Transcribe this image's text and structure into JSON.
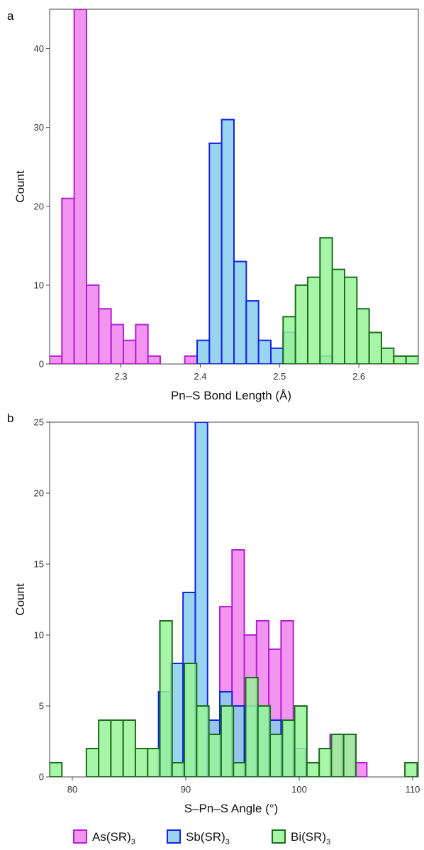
{
  "legend": {
    "items": [
      {
        "main": "As(SR)",
        "sub": "3",
        "color": "#ee82ee",
        "stroke": "#b41fd1"
      },
      {
        "main": "Sb(SR)",
        "sub": "3",
        "color": "#87ceeb",
        "stroke": "#1421e6"
      },
      {
        "main": "Bi(SR)",
        "sub": "3",
        "color": "#98f598",
        "stroke": "#1a6e1a"
      }
    ]
  },
  "chart_data": [
    {
      "type": "bar",
      "panel": "a",
      "xlabel": "Pn–S Bond Length (Å)",
      "ylabel": "Count",
      "xlim": [
        2.21,
        2.675
      ],
      "ylim": [
        0,
        45
      ],
      "xticks": [
        2.3,
        2.4,
        2.5,
        2.6
      ],
      "xtick_labels": [
        "2.3",
        "2.4",
        "2.5",
        "2.6"
      ],
      "yticks": [
        0,
        10,
        20,
        30,
        40
      ],
      "bin_width": 0.0155,
      "series": [
        {
          "name": "As(SR)3",
          "bins": [
            [
              2.21,
              1
            ],
            [
              2.2255,
              21
            ],
            [
              2.241,
              45
            ],
            [
              2.2565,
              10
            ],
            [
              2.272,
              7
            ],
            [
              2.2875,
              5
            ],
            [
              2.303,
              3
            ],
            [
              2.3185,
              5
            ],
            [
              2.334,
              1
            ],
            [
              2.3805,
              1
            ]
          ]
        },
        {
          "name": "Sb(SR)3",
          "bins": [
            [
              2.396,
              3
            ],
            [
              2.4115,
              28
            ],
            [
              2.427,
              31
            ],
            [
              2.4425,
              13
            ],
            [
              2.458,
              8
            ],
            [
              2.4735,
              3
            ],
            [
              2.489,
              2
            ],
            [
              2.5045,
              4
            ],
            [
              2.551,
              1
            ]
          ]
        },
        {
          "name": "Bi(SR)3",
          "bins": [
            [
              2.5045,
              6
            ],
            [
              2.52,
              10
            ],
            [
              2.5355,
              11
            ],
            [
              2.551,
              16
            ],
            [
              2.5665,
              12
            ],
            [
              2.582,
              11
            ],
            [
              2.5975,
              7
            ],
            [
              2.613,
              4
            ],
            [
              2.6285,
              2
            ],
            [
              2.644,
              1
            ],
            [
              2.6595,
              1
            ]
          ]
        }
      ]
    },
    {
      "type": "bar",
      "panel": "b",
      "xlabel": "S–Pn–S Angle (°)",
      "ylabel": "Count",
      "xlim": [
        78,
        110.5
      ],
      "ylim": [
        0,
        25
      ],
      "xticks": [
        80,
        90,
        100,
        110
      ],
      "xtick_labels": [
        "80",
        "90",
        "100",
        "110"
      ],
      "yticks": [
        0,
        5,
        10,
        15,
        20,
        25
      ],
      "bin_width": 1.08,
      "series": [
        {
          "name": "As(SR)3",
          "bins": [
            [
              91.92,
              4
            ],
            [
              93.0,
              12
            ],
            [
              94.08,
              16
            ],
            [
              95.16,
              10
            ],
            [
              96.24,
              11
            ],
            [
              97.32,
              9
            ],
            [
              98.4,
              11
            ],
            [
              102.72,
              3
            ],
            [
              103.8,
              3
            ],
            [
              104.88,
              1
            ]
          ]
        },
        {
          "name": "Sb(SR)3",
          "bins": [
            [
              87.6,
              6
            ],
            [
              88.68,
              8
            ],
            [
              89.76,
              13
            ],
            [
              90.84,
              25
            ],
            [
              91.92,
              4
            ],
            [
              93.0,
              6
            ],
            [
              94.08,
              5
            ],
            [
              95.16,
              5
            ],
            [
              96.24,
              5
            ],
            [
              97.32,
              4
            ],
            [
              98.4,
              4
            ],
            [
              99.48,
              2
            ]
          ]
        },
        {
          "name": "Bi(SR)3",
          "bins": [
            [
              78.0,
              1
            ],
            [
              81.24,
              2
            ],
            [
              82.32,
              4
            ],
            [
              83.4,
              4
            ],
            [
              84.48,
              4
            ],
            [
              85.56,
              2
            ],
            [
              86.64,
              2
            ],
            [
              87.72,
              11
            ],
            [
              88.8,
              1
            ],
            [
              89.88,
              8
            ],
            [
              90.96,
              5
            ],
            [
              92.04,
              3
            ],
            [
              93.12,
              5
            ],
            [
              94.2,
              1
            ],
            [
              95.28,
              7
            ],
            [
              96.36,
              5
            ],
            [
              97.44,
              3
            ],
            [
              98.52,
              4
            ],
            [
              99.6,
              5
            ],
            [
              100.68,
              1
            ],
            [
              101.76,
              2
            ],
            [
              102.84,
              3
            ],
            [
              103.92,
              3
            ],
            [
              109.32,
              1
            ]
          ]
        }
      ]
    }
  ]
}
